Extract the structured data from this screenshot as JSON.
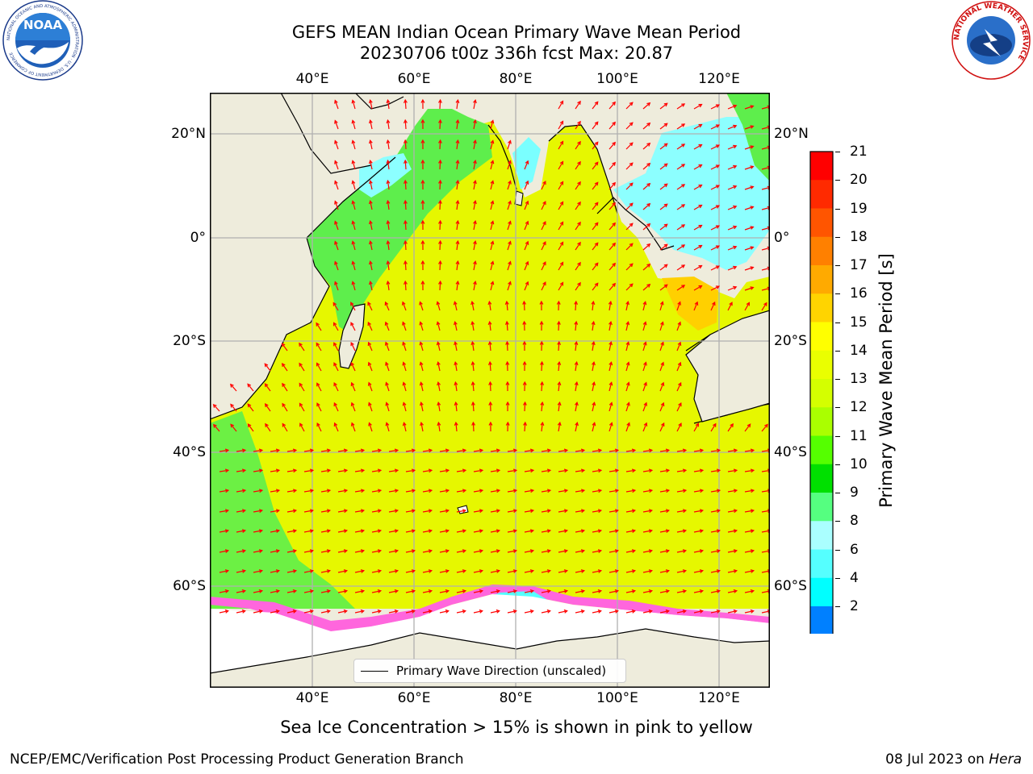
{
  "title": {
    "line1": "GEFS MEAN Indian Ocean Primary Wave Mean Period",
    "line2": "20230706 t00z 336h fcst   Max: 20.87"
  },
  "axes": {
    "lon_top": [
      "40°E",
      "60°E",
      "80°E",
      "100°E",
      "120°E"
    ],
    "lon_bottom": [
      "40°E",
      "60°E",
      "80°E",
      "100°E",
      "120°E"
    ],
    "lat_left": [
      "20°N",
      "0°",
      "20°S",
      "40°S",
      "60°S"
    ],
    "lat_right": [
      "20°N",
      "0°",
      "20°S",
      "40°S",
      "60°S"
    ]
  },
  "colorbar": {
    "label": "Primary Wave Mean Period [s]",
    "ticks": [
      "21",
      "20",
      "19",
      "18",
      "17",
      "16",
      "15",
      "14",
      "13",
      "12",
      "11",
      "10",
      "9",
      "8",
      "6",
      "4",
      "2"
    ],
    "colors": [
      "#ff0000",
      "#ff2a00",
      "#ff5500",
      "#ff8000",
      "#ffaa00",
      "#ffd400",
      "#ffff00",
      "#eaff00",
      "#d4ff00",
      "#aaff00",
      "#55ff00",
      "#00e000",
      "#55ff80",
      "#aaffff",
      "#55ffff",
      "#00ffff",
      "#0080ff",
      "#0000ff"
    ]
  },
  "legend": {
    "label": "Primary Wave Direction (unscaled)"
  },
  "caption": "Sea Ice Concentration > 15% is shown in pink to yellow",
  "footer": {
    "left": "NCEP/EMC/Verification Post Processing Product Generation Branch",
    "right_date": "08 Jul 2023 on",
    "right_host": "Hera"
  },
  "logos": {
    "noaa_text": "NOAA",
    "noaa_ring": "NATIONAL OCEANIC AND ATMOSPHERIC ADMINISTRATION · U.S. DEPARTMENT OF COMMERCE",
    "nws_ring": "NATIONAL WEATHER SERVICE"
  },
  "colors": {
    "land": "#eeecdc",
    "ocean_main": "#e6f700",
    "ocean_green": "#55ee44",
    "ocean_cyan": "#88ffff",
    "arrow": "#ff0000"
  }
}
